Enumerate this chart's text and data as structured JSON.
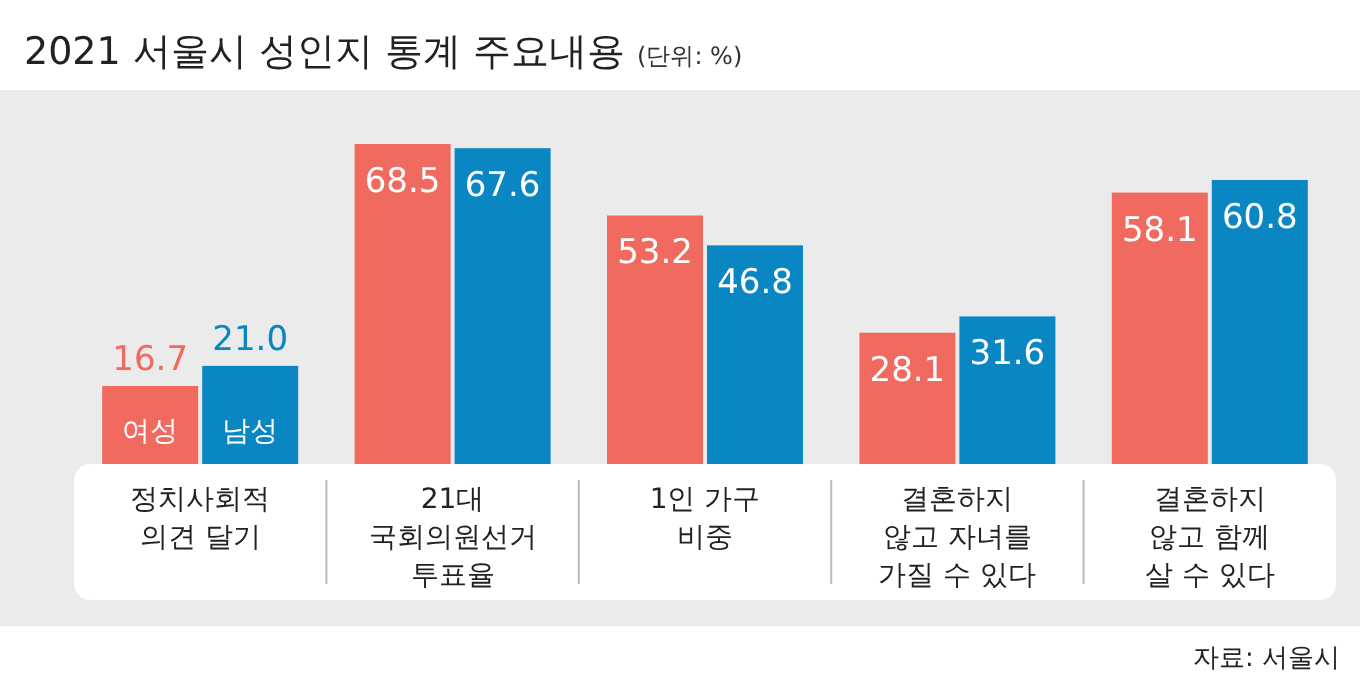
{
  "chart_data": {
    "type": "bar",
    "title": "2021 서울시 성인지 통계 주요내용",
    "subtitle": "(단위: %)",
    "categories": [
      "정치사회적\n의견 달기",
      "21대\n국회의원선거\n투표율",
      "1인 가구\n비중",
      "결혼하지\n않고 자녀를\n가질 수 있다",
      "결혼하지\n않고 함께\n살 수 있다"
    ],
    "series": [
      {
        "name": "여성",
        "color": "#f06a60",
        "values": [
          16.7,
          68.5,
          53.2,
          28.1,
          58.1
        ],
        "value_labels": [
          "16.7",
          "68.5",
          "53.2",
          "28.1",
          "58.1"
        ]
      },
      {
        "name": "남성",
        "color": "#0a87c2",
        "values": [
          21.0,
          67.6,
          46.8,
          31.6,
          60.8
        ],
        "value_labels": [
          "21.0",
          "67.6",
          "46.8",
          "31.6",
          "60.8"
        ]
      }
    ],
    "legend": false,
    "annotations": [
      "자료: 서울시"
    ]
  }
}
